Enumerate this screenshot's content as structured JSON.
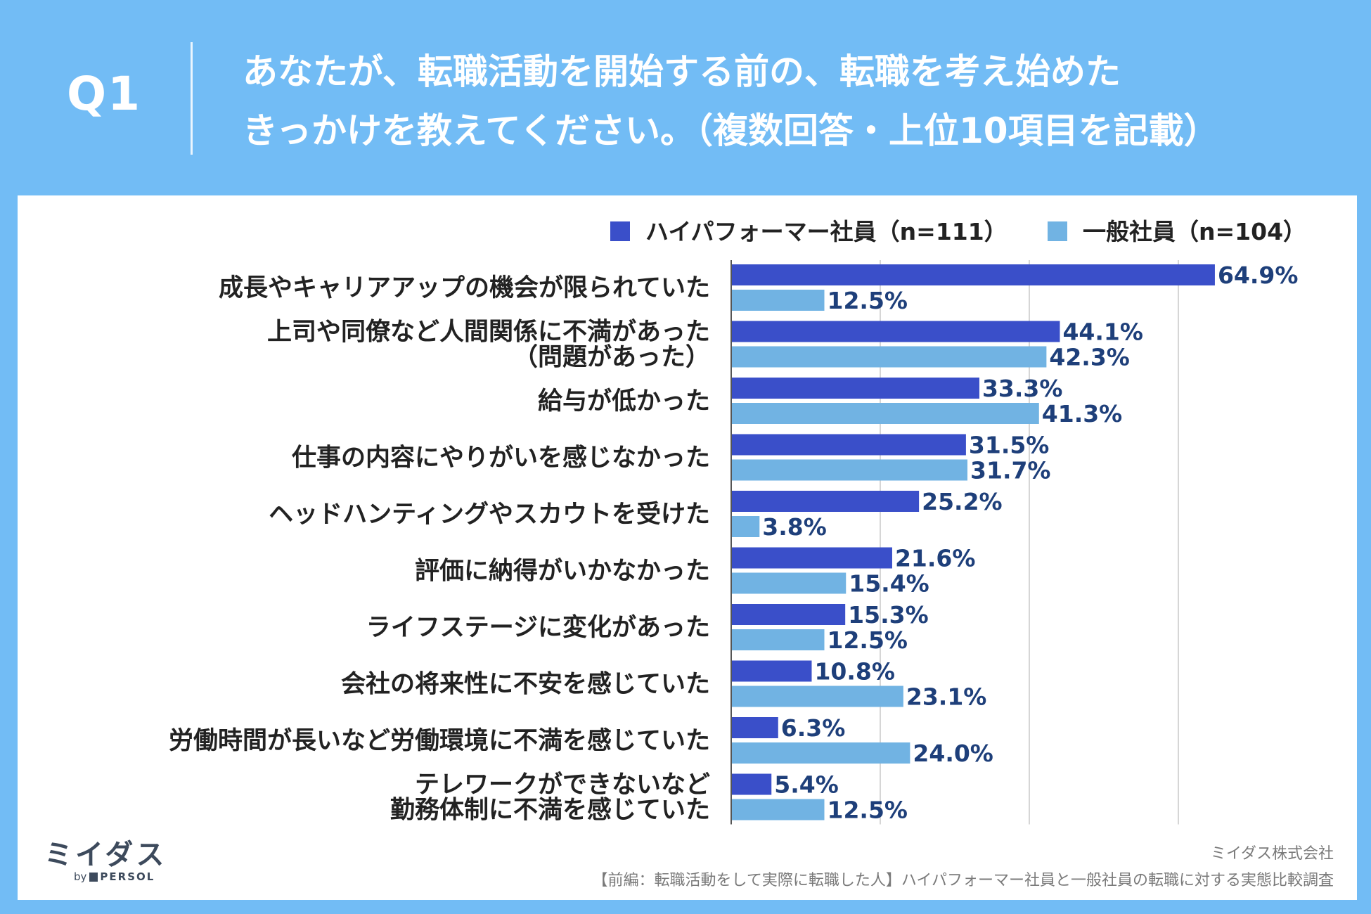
{
  "header": {
    "question_label": "Q1",
    "title_line1": "あなたが、転職活動を開始する前の、転職を考え始めた",
    "title_line2": "きっかけを教えてください。（複数回答・上位10項目を記載）"
  },
  "colors": {
    "background": "#72bcf5",
    "panel": "#ffffff",
    "series_high": "#3a4fc9",
    "series_general": "#71b3e3",
    "value_label": "#1e3f7a",
    "category_label": "#222222",
    "grid": "#c8c8c8"
  },
  "chart_data": {
    "type": "bar",
    "orientation": "horizontal",
    "title": "あなたが、転職活動を開始する前の、転職を考え始めたきっかけを教えてください。（複数回答・上位10項目を記載）",
    "xlabel": "",
    "ylabel": "",
    "xlim": [
      0,
      100
    ],
    "grid": true,
    "legend_position": "top-right",
    "value_suffix": "%",
    "categories": [
      [
        "成長やキャリアアップの機会が限られていた"
      ],
      [
        "上司や同僚など人間関係に不満があった",
        "（問題があった）"
      ],
      [
        "給与が低かった"
      ],
      [
        "仕事の内容にやりがいを感じなかった"
      ],
      [
        "ヘッドハンティングやスカウトを受けた"
      ],
      [
        "評価に納得がいかなかった"
      ],
      [
        "ライフステージに変化があった"
      ],
      [
        "会社の将来性に不安を感じていた"
      ],
      [
        "労働時間が長いなど労働環境に不満を感じていた"
      ],
      [
        "テレワークができないなど",
        "勤務体制に不満を感じていた"
      ]
    ],
    "series": [
      {
        "name": "ハイパフォーマー社員（n=111）",
        "color": "#3a4fc9",
        "values": [
          64.9,
          44.1,
          33.3,
          31.5,
          25.2,
          21.6,
          15.3,
          10.8,
          6.3,
          5.4
        ]
      },
      {
        "name": "一般社員（n=104）",
        "color": "#71b3e3",
        "values": [
          12.5,
          42.3,
          41.3,
          31.7,
          3.8,
          15.4,
          12.5,
          23.1,
          24.0,
          12.5
        ]
      }
    ]
  },
  "footer": {
    "company": "ミイダス株式会社",
    "source": "【前編：転職活動をして実際に転職した人】ハイパフォーマー社員と一般社員の転職に対する実態比較調査"
  },
  "logo": {
    "main": "ミイダス",
    "by": "by",
    "brand": "PERSOL"
  }
}
